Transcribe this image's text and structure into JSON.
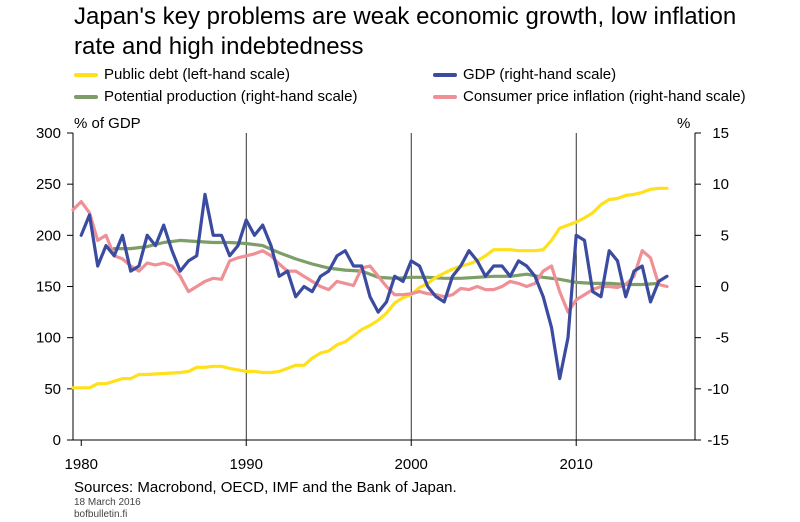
{
  "title": "Japan's key problems are weak economic growth, low inflation rate and high indebtedness",
  "legend": [
    {
      "label": "Public debt (left-hand scale)",
      "color": "#ffe01b"
    },
    {
      "label": "GDP (right-hand scale)",
      "color": "#3b4ba0"
    },
    {
      "label": "Potential production (right-hand scale)",
      "color": "#7d9e66"
    },
    {
      "label": "Consumer price inflation (right-hand scale)",
      "color": "#ef8f96"
    }
  ],
  "left_unit": "% of GDP",
  "right_unit": "%",
  "source": "Sources: Macrobond, OECD, IMF and the Bank of Japan.",
  "date": "18 March 2016",
  "site": "bofbulletin.fi",
  "chart_data": {
    "type": "line",
    "xlim": [
      1979.5,
      2017.2
    ],
    "x_ticks": [
      1980,
      1990,
      2000,
      2010
    ],
    "left_axis": {
      "label": "% of GDP",
      "ylim": [
        0,
        300
      ],
      "ticks": [
        0,
        50,
        100,
        150,
        200,
        250,
        300
      ]
    },
    "right_axis": {
      "label": "%",
      "ylim": [
        -15,
        15
      ],
      "ticks": [
        -15,
        -10,
        -5,
        0,
        5,
        10,
        15
      ]
    },
    "grid": "vertical at 1990, 2000, 2010",
    "legend_position": "top",
    "series": [
      {
        "name": "Public debt (left-hand scale)",
        "axis": "left",
        "color": "#ffe01b",
        "x": [
          1979.5,
          1980.5,
          1981,
          1981.5,
          1982.5,
          1983,
          1983.5,
          1984,
          1985,
          1986,
          1986.5,
          1987,
          1987.5,
          1988,
          1988.5,
          1989,
          1990,
          1990.5,
          1991,
          1991.5,
          1992,
          1992.5,
          1993,
          1993.5,
          1994,
          1994.5,
          1995,
          1995.5,
          1996,
          1996.5,
          1997,
          1997.5,
          1998,
          1998.5,
          1999,
          1999.5,
          2000,
          2000.5,
          2001,
          2001.5,
          2002,
          2002.5,
          2003,
          2003.5,
          2004,
          2004.5,
          2005,
          2005.5,
          2006,
          2006.5,
          2007,
          2007.5,
          2008,
          2008.5,
          2009,
          2009.5,
          2010,
          2010.5,
          2011,
          2011.5,
          2012,
          2012.5,
          2013,
          2013.5,
          2014,
          2014.5,
          2015,
          2015.5
        ],
        "values": [
          51,
          51,
          55,
          55,
          60,
          60,
          64,
          64,
          65,
          66,
          67,
          71,
          71,
          72,
          72,
          70,
          67,
          67,
          66,
          66,
          67,
          70,
          73,
          73,
          80,
          85,
          87,
          93,
          96,
          102,
          108,
          112,
          117,
          124,
          134,
          139,
          142,
          149,
          153,
          159,
          163,
          167,
          170,
          172,
          175,
          180,
          186,
          186,
          186,
          185,
          185,
          185,
          186,
          195,
          207,
          210,
          213,
          217,
          222,
          230,
          235,
          236,
          239,
          240,
          242,
          245,
          246,
          246
        ]
      },
      {
        "name": "GDP (right-hand scale)",
        "axis": "right",
        "color": "#3b4ba0",
        "x": [
          1980,
          1980.5,
          1981,
          1981.5,
          1982,
          1982.5,
          1983,
          1983.5,
          1984,
          1984.5,
          1985,
          1985.5,
          1986,
          1986.5,
          1987,
          1987.5,
          1988,
          1988.5,
          1989,
          1989.5,
          1990,
          1990.5,
          1991,
          1991.5,
          1992,
          1992.5,
          1993,
          1993.5,
          1994,
          1994.5,
          1995,
          1995.5,
          1996,
          1996.5,
          1997,
          1997.5,
          1998,
          1998.5,
          1999,
          1999.5,
          2000,
          2000.5,
          2001,
          2001.5,
          2002,
          2002.5,
          2003,
          2003.5,
          2004,
          2004.5,
          2005,
          2005.5,
          2006,
          2006.5,
          2007,
          2007.5,
          2008,
          2008.5,
          2009,
          2009.5,
          2010,
          2010.5,
          2011,
          2011.5,
          2012,
          2012.5,
          2013,
          2013.5,
          2014,
          2014.5,
          2015,
          2015.5
        ],
        "values": [
          5,
          7,
          2,
          4,
          3,
          5,
          1.5,
          2,
          5,
          4,
          6,
          3.5,
          1.5,
          2.5,
          3,
          9,
          5,
          5,
          3,
          4,
          6.5,
          5,
          6,
          4,
          1,
          1.5,
          -1,
          0,
          -0.5,
          1,
          1.5,
          3,
          3.5,
          2,
          2,
          -1,
          -2.5,
          -1.5,
          1,
          0.5,
          2.5,
          2,
          0,
          -1,
          -1.5,
          1,
          2,
          3.5,
          2.5,
          1,
          2,
          2,
          1,
          2.5,
          2,
          1,
          -1,
          -4,
          -9,
          -5,
          5,
          4.5,
          -0.5,
          -1,
          3.5,
          2.5,
          -1,
          1.5,
          2,
          -1.5,
          0.5,
          1
        ]
      },
      {
        "name": "Potential production (right-hand scale)",
        "axis": "right",
        "color": "#7d9e66",
        "x": [
          1982,
          1983,
          1984,
          1985,
          1986,
          1987,
          1988,
          1989,
          1990,
          1991,
          1992,
          1993,
          1994,
          1995,
          1996,
          1997,
          1998,
          1999,
          2000,
          2001,
          2002,
          2003,
          2004,
          2005,
          2006,
          2007,
          2008,
          2009,
          2010,
          2011,
          2012,
          2013,
          2014,
          2015
        ],
        "values": [
          3.7,
          3.7,
          3.9,
          4.3,
          4.5,
          4.4,
          4.3,
          4.3,
          4.2,
          4.0,
          3.3,
          2.7,
          2.2,
          1.8,
          1.6,
          1.5,
          0.9,
          0.8,
          0.9,
          0.9,
          0.8,
          0.8,
          0.9,
          1.0,
          1.0,
          1.2,
          0.9,
          0.7,
          0.4,
          0.3,
          0.3,
          0.2,
          0.2,
          0.3
        ]
      },
      {
        "name": "Consumer price inflation (right-hand scale)",
        "axis": "right",
        "color": "#ef8f96",
        "x": [
          1979.5,
          1980,
          1980.5,
          1981,
          1981.5,
          1982,
          1982.5,
          1983,
          1983.5,
          1984,
          1984.5,
          1985,
          1985.5,
          1986,
          1986.5,
          1987,
          1987.5,
          1988,
          1988.5,
          1989,
          1989.5,
          1990,
          1990.5,
          1991,
          1991.5,
          1992,
          1992.5,
          1993,
          1993.5,
          1994,
          1994.5,
          1995,
          1995.5,
          1996,
          1996.5,
          1997,
          1997.5,
          1998,
          1998.5,
          1999,
          1999.5,
          2000,
          2000.5,
          2001,
          2001.5,
          2002,
          2002.5,
          2003,
          2003.5,
          2004,
          2004.5,
          2005,
          2005.5,
          2006,
          2006.5,
          2007,
          2007.5,
          2008,
          2008.5,
          2009,
          2009.5,
          2010,
          2010.5,
          2011,
          2011.5,
          2012,
          2012.5,
          2013,
          2013.5,
          2014,
          2014.5,
          2015,
          2015.5
        ],
        "values": [
          7.5,
          8.3,
          7.2,
          4.5,
          5,
          3,
          2.7,
          2,
          1.5,
          2.3,
          2.1,
          2.3,
          2,
          1,
          -0.5,
          0,
          0.5,
          0.8,
          0.7,
          2.5,
          2.8,
          3,
          3.2,
          3.5,
          3,
          2.2,
          1.5,
          1.5,
          1,
          0.5,
          0,
          -0.3,
          0.5,
          0.3,
          0.1,
          1.8,
          2,
          1,
          0,
          -0.8,
          -0.8,
          -0.7,
          -0.5,
          -0.7,
          -0.8,
          -1,
          -0.8,
          -0.2,
          -0.3,
          0,
          -0.3,
          -0.3,
          0,
          0.5,
          0.3,
          0,
          0.3,
          1.5,
          2,
          -0.5,
          -2.5,
          -1.3,
          -0.8,
          -0.3,
          0,
          0,
          -0.1,
          0.2,
          1,
          3.5,
          2.8,
          0.2,
          0
        ]
      }
    ]
  }
}
